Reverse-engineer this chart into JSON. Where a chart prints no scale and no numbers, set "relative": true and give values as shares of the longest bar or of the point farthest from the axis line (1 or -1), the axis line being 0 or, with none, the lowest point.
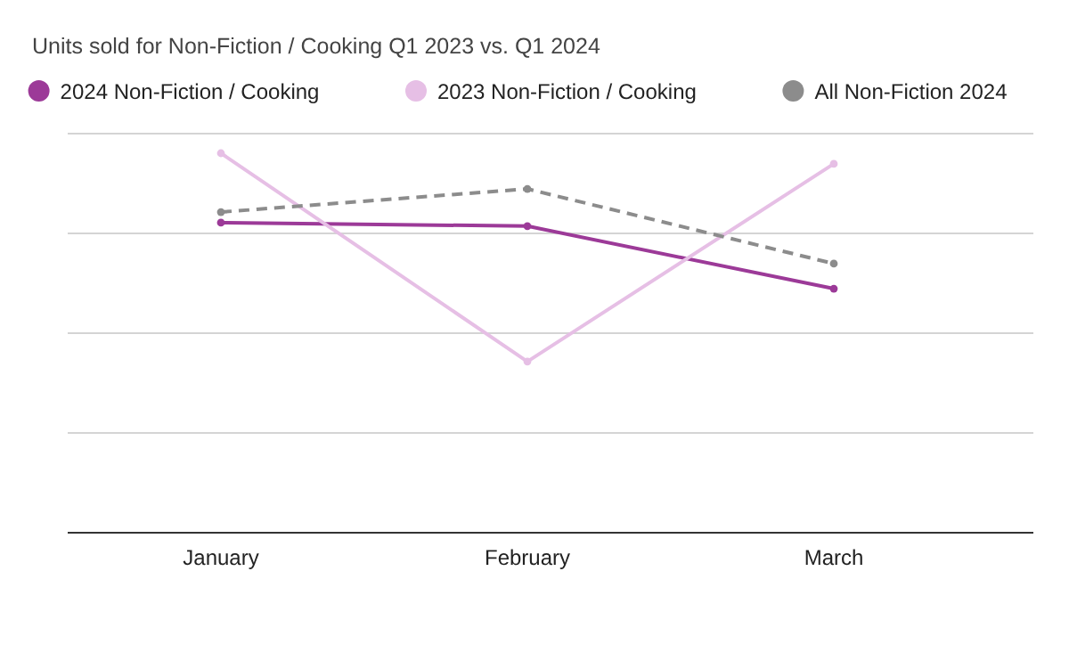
{
  "chart_data": {
    "type": "line",
    "title": "Units sold for Non-Fiction / Cooking Q1 2023 vs. Q1 2024",
    "categories": [
      "January",
      "February",
      "March"
    ],
    "relative": true,
    "grid": "y",
    "legend": "top",
    "marker": "circle",
    "series": [
      {
        "name": "2024 Non-Fiction / Cooking",
        "color": "#9c3a98",
        "values": [
          0.817,
          0.808,
          0.643
        ],
        "line_style": "solid"
      },
      {
        "name": "2023 Non-Fiction / Cooking",
        "color": "#e6bfe5",
        "values": [
          1,
          0.451,
          0.972
        ],
        "line_style": "solid"
      },
      {
        "name": "All Non-Fiction 2024",
        "color": "#8c8c8c",
        "values": [
          0.845,
          0.906,
          0.709
        ],
        "line_style": "dashed"
      }
    ]
  }
}
